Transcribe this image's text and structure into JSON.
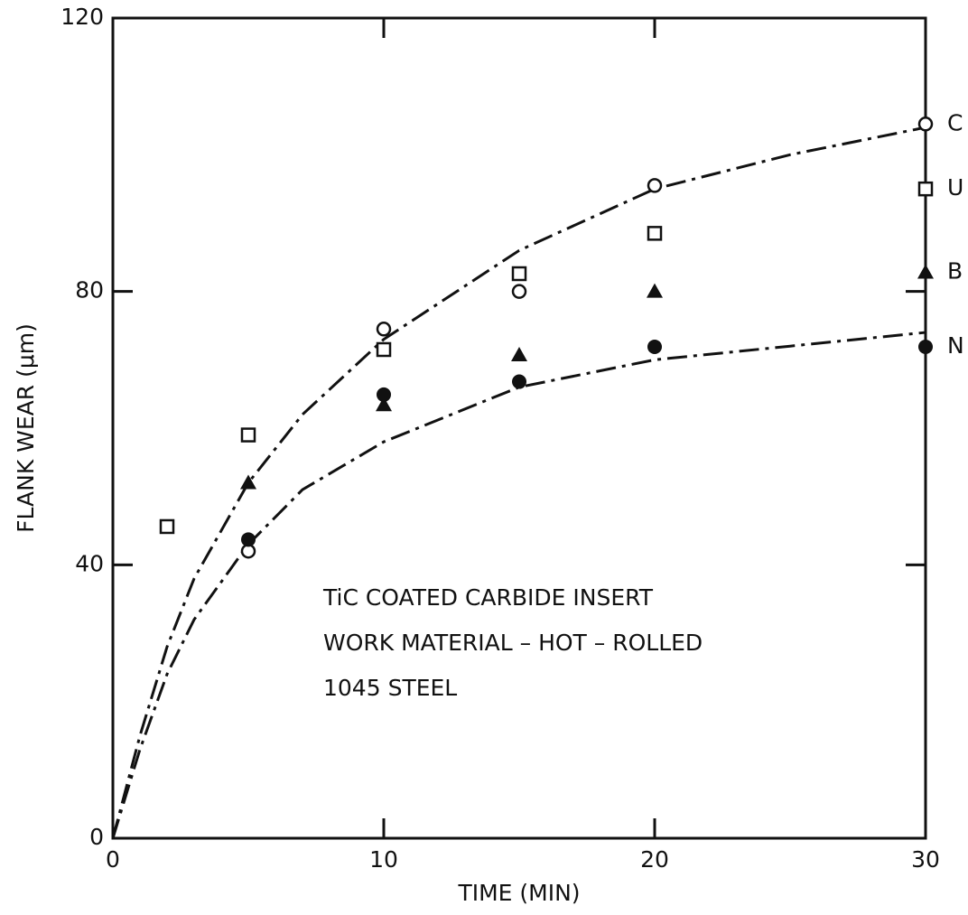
{
  "chart_data": {
    "type": "scatter",
    "xlabel": "TIME (MIN)",
    "ylabel": "FLANK WEAR (μm)",
    "annotations": [
      "TiC COATED CARBIDE INSERT",
      "WORK MATERIAL – HOT – ROLLED",
      "1045 STEEL"
    ],
    "xlim": [
      0,
      30
    ],
    "ylim": [
      0,
      120
    ],
    "xticks": [
      0,
      10,
      20,
      30
    ],
    "yticks": [
      0,
      40,
      80,
      120
    ],
    "series": [
      {
        "name": "C",
        "marker": "circle-open",
        "color": "#111",
        "x": [
          5,
          10,
          15,
          20,
          30
        ],
        "values": [
          42,
          74.5,
          80,
          95.5,
          104.5
        ]
      },
      {
        "name": "U",
        "marker": "square-open",
        "color": "#111",
        "x": [
          2,
          5,
          10,
          15,
          20,
          30
        ],
        "values": [
          45.6,
          59,
          71.5,
          82.6,
          88.5,
          95
        ]
      },
      {
        "name": "B",
        "marker": "triangle",
        "color": "#111",
        "x": [
          5,
          10,
          15,
          20,
          30
        ],
        "values": [
          52,
          63.4,
          70.7,
          80,
          82.8
        ]
      },
      {
        "name": "N",
        "marker": "circle",
        "color": "#111",
        "x": [
          5,
          10,
          15,
          20,
          30
        ],
        "values": [
          43.7,
          64.9,
          66.8,
          71.9,
          71.9
        ]
      }
    ],
    "curves": [
      {
        "color": "#111",
        "x": [
          0,
          1,
          2,
          3,
          5,
          7,
          10,
          15,
          20,
          25,
          30
        ],
        "values": [
          0,
          15,
          28,
          38,
          52,
          62,
          73,
          86,
          95,
          100,
          104
        ]
      },
      {
        "color": "#111",
        "x": [
          0,
          1,
          2,
          3,
          5,
          7,
          10,
          15,
          20,
          25,
          30
        ],
        "values": [
          0,
          13,
          24,
          32,
          43,
          51,
          58,
          66,
          70,
          72,
          74
        ]
      }
    ]
  }
}
